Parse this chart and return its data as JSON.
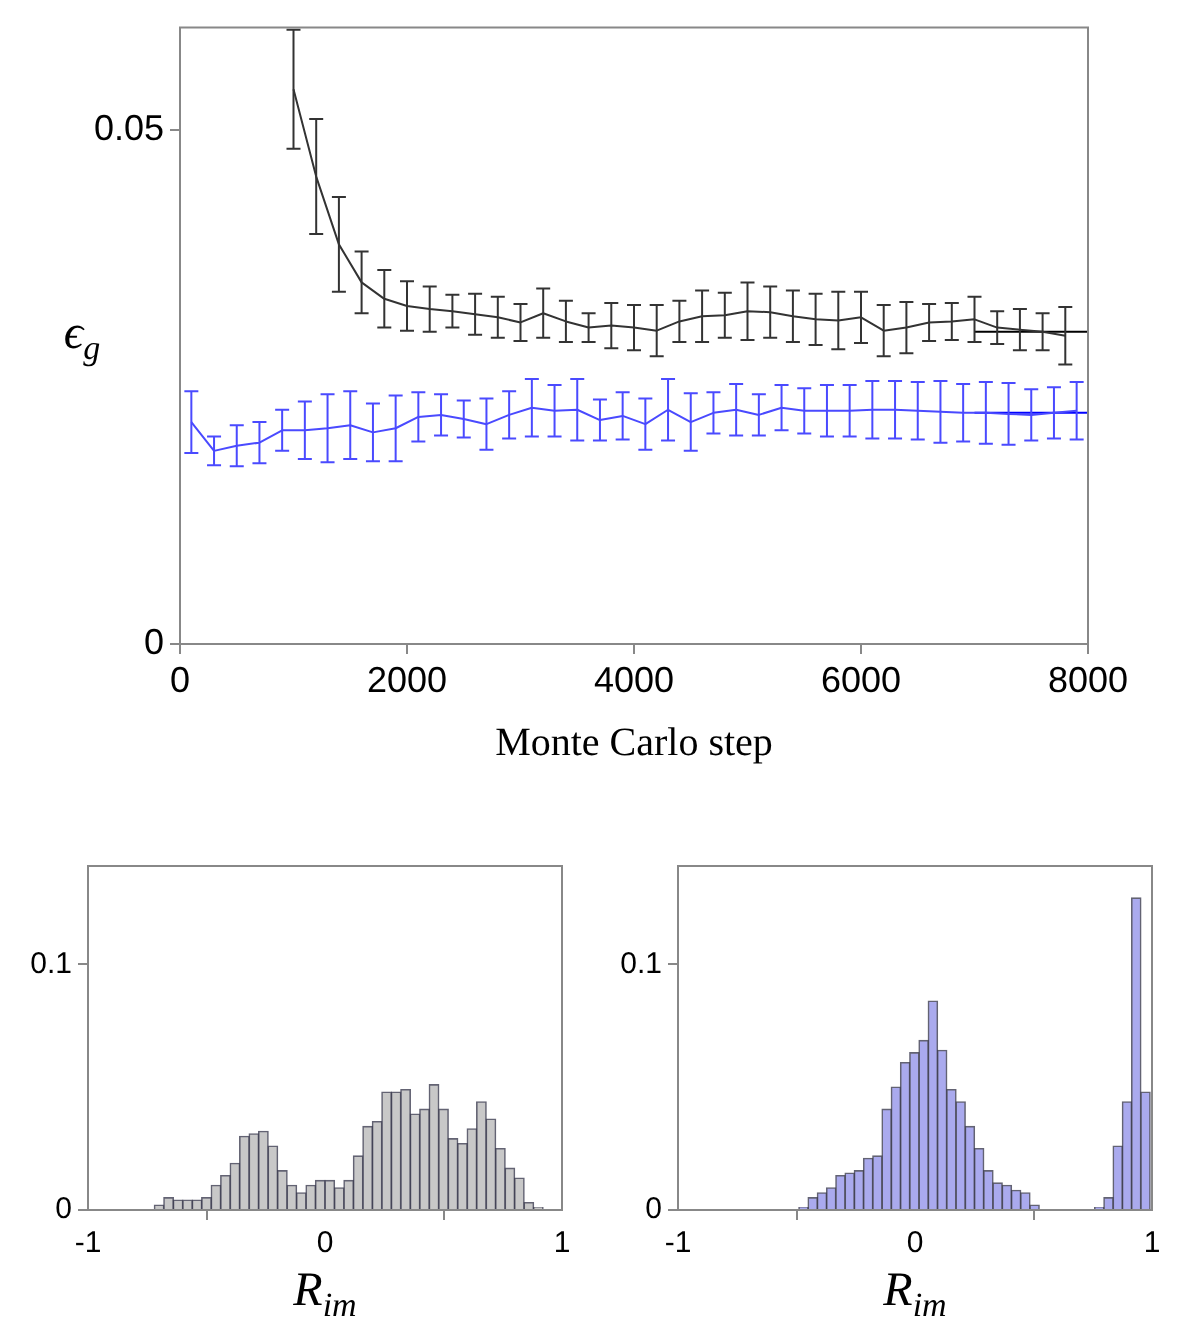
{
  "chart_data": [
    {
      "type": "line",
      "xlabel": "Monte Carlo step",
      "ylabel": "ϵ$_{g}$",
      "xlim": [
        0,
        8000
      ],
      "xticks": [
        0,
        2000,
        4000,
        6000,
        8000
      ],
      "ylim": [
        0,
        0.06
      ],
      "yticks": [
        0,
        0.05
      ],
      "grid": false,
      "marker": "none",
      "series": [
        {
          "type": "line",
          "color": "#333333",
          "x": [
            1000,
            1200,
            1400,
            1600,
            1800,
            2000,
            2200,
            2400,
            2600,
            2800,
            3000,
            3200,
            3400,
            3600,
            3800,
            4000,
            4200,
            4400,
            4600,
            4800,
            5000,
            5200,
            5400,
            5600,
            5800,
            6000,
            6200,
            6400,
            6600,
            6800,
            7000,
            7200,
            7400,
            7600,
            7800
          ],
          "values": [
            0.054,
            0.0455,
            0.0389,
            0.0352,
            0.0336,
            0.0329,
            0.0326,
            0.0324,
            0.0321,
            0.0318,
            0.0313,
            0.0322,
            0.0314,
            0.0308,
            0.031,
            0.0308,
            0.0305,
            0.0314,
            0.0319,
            0.032,
            0.0324,
            0.0323,
            0.0319,
            0.0316,
            0.0315,
            0.0318,
            0.0305,
            0.0308,
            0.0313,
            0.0314,
            0.0316,
            0.0308,
            0.0306,
            0.0304,
            0.03
          ],
          "errors": [
            0.0058,
            0.0056,
            0.0046,
            0.003,
            0.0028,
            0.0024,
            0.0022,
            0.0016,
            0.002,
            0.002,
            0.0018,
            0.0024,
            0.002,
            0.0014,
            0.0022,
            0.0022,
            0.0025,
            0.002,
            0.0025,
            0.0022,
            0.0028,
            0.0025,
            0.0025,
            0.0025,
            0.0028,
            0.0025,
            0.0025,
            0.0025,
            0.0018,
            0.0018,
            0.0022,
            0.0016,
            0.002,
            0.0018,
            0.0028
          ]
        },
        {
          "type": "line",
          "color": "#4a4aff",
          "x": [
            100,
            300,
            500,
            700,
            900,
            1100,
            1300,
            1500,
            1700,
            1900,
            2100,
            2300,
            2500,
            2700,
            2900,
            3100,
            3300,
            3500,
            3700,
            3900,
            4100,
            4300,
            4500,
            4700,
            4900,
            5100,
            5300,
            5500,
            5700,
            5900,
            6100,
            6300,
            6500,
            6700,
            6900,
            7100,
            7300,
            7500,
            7700,
            7900
          ],
          "values": [
            0.0216,
            0.0188,
            0.0193,
            0.0196,
            0.0208,
            0.0208,
            0.021,
            0.0213,
            0.0206,
            0.021,
            0.0221,
            0.0223,
            0.0219,
            0.0214,
            0.0223,
            0.023,
            0.0227,
            0.0228,
            0.0218,
            0.0222,
            0.0214,
            0.0228,
            0.0216,
            0.0225,
            0.0228,
            0.0223,
            0.023,
            0.0227,
            0.0227,
            0.0227,
            0.0228,
            0.0228,
            0.0227,
            0.0226,
            0.0225,
            0.0225,
            0.0224,
            0.0223,
            0.0225,
            0.0227
          ],
          "errors": [
            0.003,
            0.0014,
            0.002,
            0.002,
            0.002,
            0.0028,
            0.0033,
            0.0033,
            0.0028,
            0.0032,
            0.0024,
            0.002,
            0.0018,
            0.0025,
            0.0023,
            0.0028,
            0.0025,
            0.003,
            0.002,
            0.0023,
            0.0025,
            0.003,
            0.0028,
            0.002,
            0.0025,
            0.002,
            0.0022,
            0.0022,
            0.0025,
            0.0025,
            0.0028,
            0.0028,
            0.0028,
            0.003,
            0.0028,
            0.003,
            0.003,
            0.0025,
            0.0025,
            0.0028
          ]
        },
        {
          "type": "line",
          "color": "#000000",
          "x": [
            7000,
            8000
          ],
          "values": [
            0.0304,
            0.0304
          ]
        },
        {
          "type": "line",
          "color": "#0000ff",
          "x": [
            7000,
            8000
          ],
          "values": [
            0.0225,
            0.0225
          ]
        }
      ]
    },
    {
      "type": "histogram",
      "xlabel": "R$_{im}$",
      "xlim": [
        -1,
        1
      ],
      "xticks": [
        -1,
        0,
        1
      ],
      "ylim": [
        0,
        0.14
      ],
      "yticks": [
        0,
        0.1
      ],
      "grid": false,
      "color": "#c8c8c8",
      "bins": [
        -0.72,
        -0.68,
        -0.64,
        -0.6,
        -0.56,
        -0.52,
        -0.48,
        -0.44,
        -0.4,
        -0.36,
        -0.32,
        -0.28,
        -0.24,
        -0.2,
        -0.16,
        -0.12,
        -0.08,
        -0.04,
        0,
        0.04,
        0.08,
        0.12,
        0.16,
        0.2,
        0.24,
        0.28,
        0.32,
        0.36,
        0.4,
        0.44,
        0.48,
        0.52,
        0.56,
        0.6,
        0.64,
        0.68,
        0.72,
        0.76,
        0.8,
        0.84,
        0.88,
        0.92
      ],
      "values": [
        0.002,
        0.005,
        0.004,
        0.004,
        0.004,
        0.005,
        0.01,
        0.014,
        0.019,
        0.03,
        0.031,
        0.032,
        0.026,
        0.016,
        0.01,
        0.007,
        0.01,
        0.012,
        0.012,
        0.009,
        0.012,
        0.022,
        0.034,
        0.036,
        0.048,
        0.048,
        0.049,
        0.039,
        0.041,
        0.051,
        0.041,
        0.029,
        0.027,
        0.033,
        0.044,
        0.037,
        0.025,
        0.017,
        0.013,
        0.003,
        0.001
      ]
    },
    {
      "type": "histogram",
      "xlabel": "R$_{im}$",
      "xlim": [
        -1,
        1
      ],
      "xticks": [
        -1,
        0,
        1
      ],
      "ylim": [
        0,
        0.14
      ],
      "yticks": [
        0,
        0.1
      ],
      "grid": false,
      "color": "#aaaaee",
      "bins": [
        -0.49,
        -0.451,
        -0.412,
        -0.373,
        -0.334,
        -0.295,
        -0.256,
        -0.217,
        -0.178,
        -0.139,
        -0.1,
        -0.061,
        -0.022,
        0.017,
        0.056,
        0.095,
        0.134,
        0.173,
        0.212,
        0.251,
        0.29,
        0.329,
        0.368,
        0.407,
        0.446,
        0.485,
        0.524,
        0.563,
        0.602,
        0.641,
        0.68,
        0.719,
        0.758,
        0.797,
        0.836,
        0.875,
        0.914,
        0.953,
        0.992
      ],
      "values": [
        0.001,
        0.005,
        0.007,
        0.009,
        0.014,
        0.015,
        0.016,
        0.021,
        0.022,
        0.041,
        0.05,
        0.06,
        0.064,
        0.069,
        0.085,
        0.065,
        0.049,
        0.044,
        0.034,
        0.025,
        0.016,
        0.011,
        0.01,
        0.008,
        0.007,
        0.002,
        0,
        0,
        0,
        0,
        0,
        0,
        0.001,
        0.005,
        0.026,
        0.044,
        0.127,
        0.048
      ]
    }
  ]
}
